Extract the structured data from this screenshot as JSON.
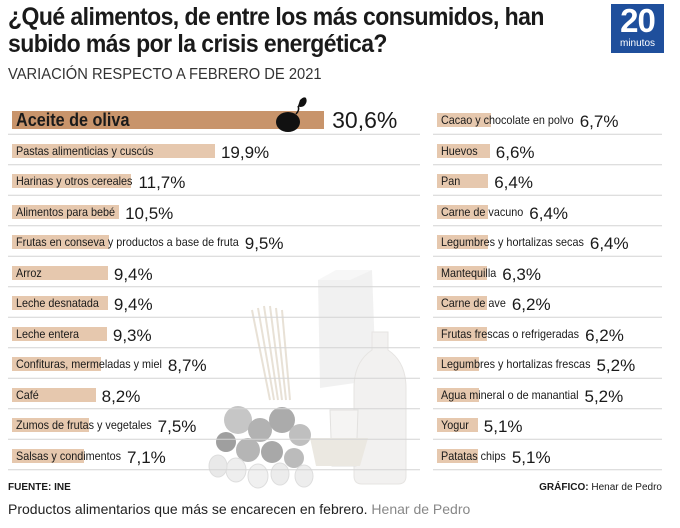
{
  "chart_data": {
    "type": "bar",
    "title": "¿Qué alimentos, de entre los más consumidos, han subido más por la crisis energética?",
    "subtitle": "VARIACIÓN RESPECTO A FEBRERO DE 2021",
    "unit": "%",
    "series": [
      {
        "values": [
          {
            "label": "Aceite de oliva",
            "value": 30.6,
            "display": "30,6%"
          },
          {
            "label": "Pastas alimenticias y cuscús",
            "value": 19.9,
            "display": "19,9%"
          },
          {
            "label": "Harinas y otros cereales",
            "value": 11.7,
            "display": "11,7%"
          },
          {
            "label": "Alimentos para bebé",
            "value": 10.5,
            "display": "10,5%"
          },
          {
            "label": "Frutas en conseva y productos a base de fruta",
            "value": 9.5,
            "display": "9,5%"
          },
          {
            "label": "Arroz",
            "value": 9.4,
            "display": "9,4%"
          },
          {
            "label": "Leche desnatada",
            "value": 9.4,
            "display": "9,4%"
          },
          {
            "label": "Leche entera",
            "value": 9.3,
            "display": "9,3%"
          },
          {
            "label": "Confituras, mermeladas y miel",
            "value": 8.7,
            "display": "8,7%"
          },
          {
            "label": "Café",
            "value": 8.2,
            "display": "8,2%"
          },
          {
            "label": "Zumos de frutas y vegetales",
            "value": 7.5,
            "display": "7,5%"
          },
          {
            "label": "Salsas y condimentos",
            "value": 7.1,
            "display": "7,1%"
          },
          {
            "label": "Cacao y chocolate en polvo",
            "value": 6.7,
            "display": "6,7%"
          },
          {
            "label": "Huevos",
            "value": 6.6,
            "display": "6,6%"
          },
          {
            "label": "Pan",
            "value": 6.4,
            "display": "6,4%"
          },
          {
            "label": "Carne de vacuno",
            "value": 6.4,
            "display": "6,4%"
          },
          {
            "label": "Legumbres y hortalizas secas",
            "value": 6.4,
            "display": "6,4%"
          },
          {
            "label": "Mantequilla",
            "value": 6.3,
            "display": "6,3%"
          },
          {
            "label": "Carne de ave",
            "value": 6.2,
            "display": "6,2%"
          },
          {
            "label": "Frutas frescas o refrigeradas",
            "value": 6.2,
            "display": "6,2%"
          },
          {
            "label": "Legumbres y hortalizas frescas",
            "value": 5.2,
            "display": "5,2%"
          },
          {
            "label": "Agua mineral o de manantial",
            "value": 5.2,
            "display": "5,2%"
          },
          {
            "label": "Yogur",
            "value": 5.1,
            "display": "5,1%"
          },
          {
            "label": "Patatas chips",
            "value": 5.1,
            "display": "5,1%"
          }
        ]
      }
    ],
    "layout": "two-column",
    "colors": {
      "highlight": "#c8946b",
      "bar": "#e6c8ae",
      "rule": "#d4d4d4"
    }
  },
  "logo": {
    "number": "20",
    "text": "minutos",
    "color": "#1f4f9c"
  },
  "footer": {
    "source": "FUENTE: INE",
    "credit_label": "GRÁFICO:",
    "credit_name": "Henar de Pedro"
  },
  "caption": {
    "text": "Productos alimentarios que más se encarecen en febrero.",
    "author": "Henar de Pedro"
  }
}
